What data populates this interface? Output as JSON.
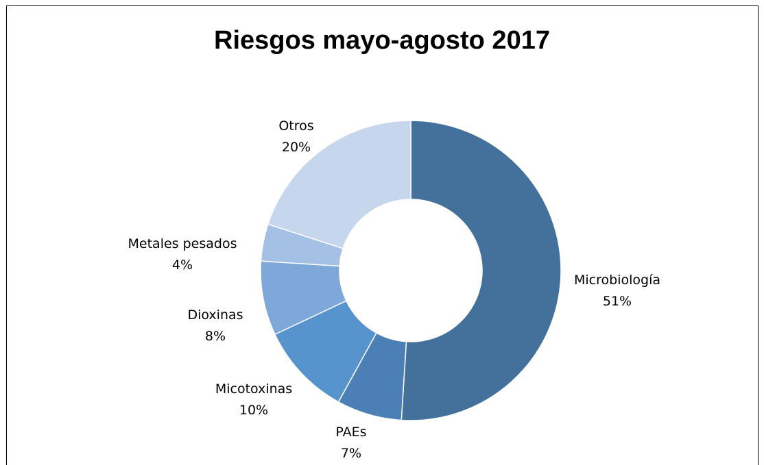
{
  "chart_data": {
    "type": "pie",
    "variant": "donut",
    "title": "Riesgos mayo-agosto 2017",
    "slices": [
      {
        "label": "Microbiología",
        "value": 51,
        "pct_label": "51%",
        "color": "#43719b"
      },
      {
        "label": "PAEs",
        "value": 7,
        "pct_label": "7%",
        "color": "#4b7fb6"
      },
      {
        "label": "Micotoxinas",
        "value": 10,
        "pct_label": "10%",
        "color": "#5793cc"
      },
      {
        "label": "Dioxinas",
        "value": 8,
        "pct_label": "8%",
        "color": "#7ea8da"
      },
      {
        "label": "Metales pesados",
        "value": 4,
        "pct_label": "4%",
        "color": "#a4c1e5"
      },
      {
        "label": "Otros",
        "value": 20,
        "pct_label": "20%",
        "color": "#c5d6ed"
      }
    ],
    "legend": "none",
    "data_labels": "outside"
  }
}
